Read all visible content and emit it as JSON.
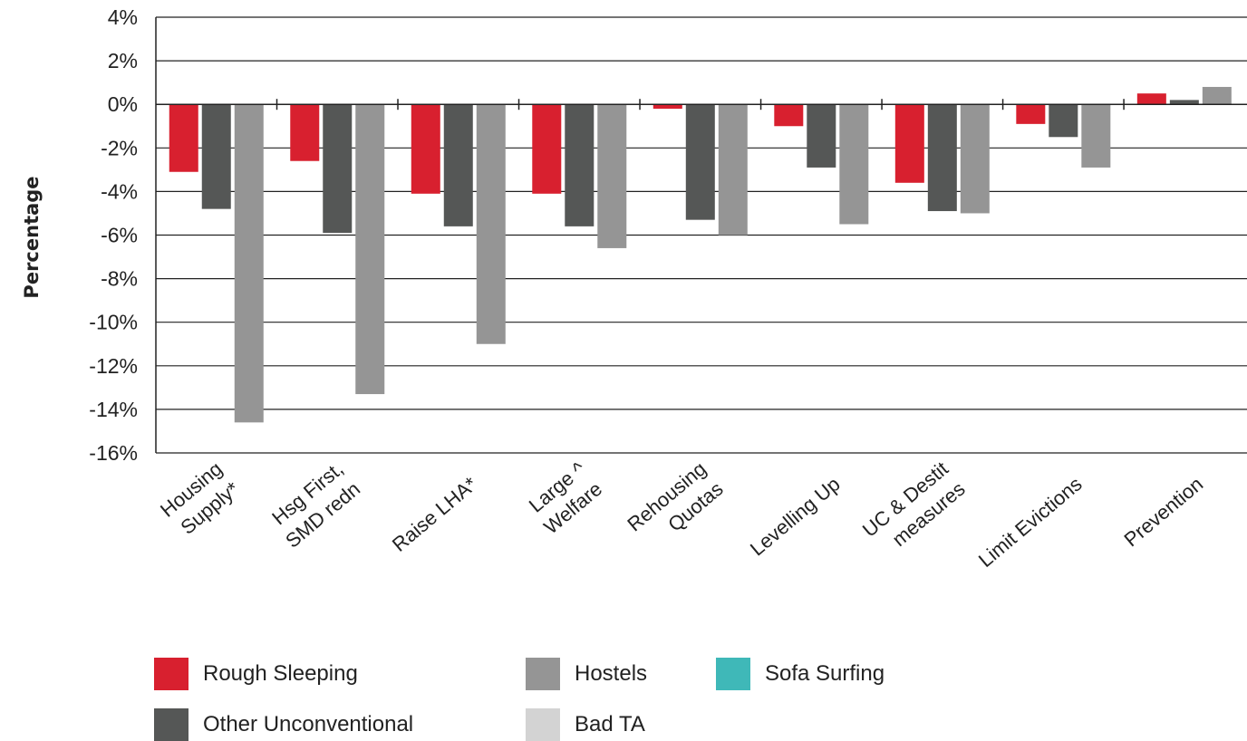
{
  "chart_data": {
    "type": "bar",
    "title": "",
    "xlabel": "",
    "ylabel": "Percentage",
    "ylim": [
      -16,
      4
    ],
    "ytick_step": 2,
    "y_format": "percent",
    "grid": "horizontal",
    "legend_position": "bottom",
    "categories": [
      [
        "Housing",
        "Supply*"
      ],
      [
        "Hsg First,",
        "SMD redn"
      ],
      [
        "Raise LHA*"
      ],
      [
        "Large ^",
        "Welfare"
      ],
      [
        "Rehousing",
        "Quotas"
      ],
      [
        "Levelling Up"
      ],
      [
        "UC & Destit",
        "measures"
      ],
      [
        "Limit Evictions"
      ],
      [
        "Prevention"
      ]
    ],
    "series": [
      {
        "name": "Rough Sleeping",
        "color": "#d8202f",
        "values": [
          -3.1,
          -2.6,
          -4.1,
          -4.1,
          -0.2,
          -1.0,
          -3.6,
          -0.9,
          0.5
        ]
      },
      {
        "name": "Other Unconventional",
        "color": "#555756",
        "values": [
          -4.8,
          -5.9,
          -5.6,
          -5.6,
          -5.3,
          -2.9,
          -4.9,
          -1.5,
          0.2
        ]
      },
      {
        "name": "Hostels",
        "color": "#959595",
        "values": [
          -14.6,
          -13.3,
          -11.0,
          -6.6,
          -6.0,
          -5.5,
          -5.0,
          -2.9,
          0.8
        ]
      },
      {
        "name": "Sofa Surfing",
        "color": "#3fb8b8",
        "values": [
          0,
          0,
          0,
          0,
          0,
          0,
          0,
          0,
          0
        ]
      },
      {
        "name": "Bad TA",
        "color": "#d3d3d3",
        "values": [
          0,
          0,
          0,
          0,
          0,
          0,
          0,
          0,
          0
        ]
      }
    ]
  }
}
